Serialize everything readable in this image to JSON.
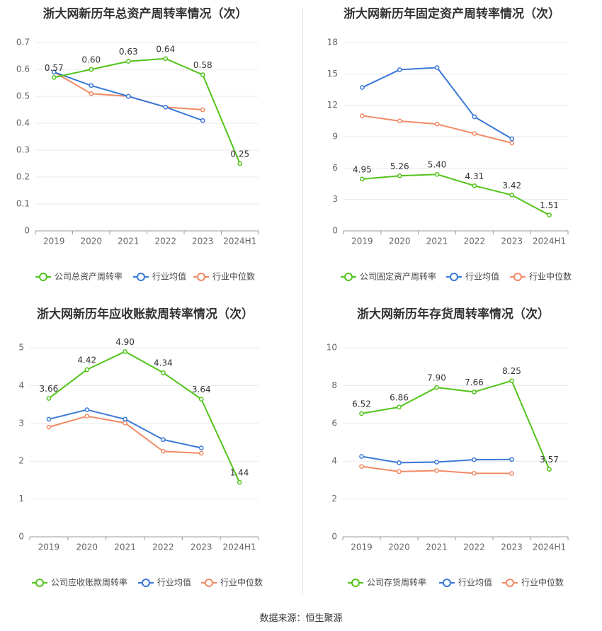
{
  "source": "数据来源：恒生聚源",
  "colors": {
    "company": "#52c41a",
    "avg": "#3a78d8",
    "median": "#f08a64"
  },
  "chart_data": [
    {
      "type": "line",
      "title": "浙大网新历年总资产周转率情况（次）",
      "categories": [
        "2019",
        "2020",
        "2021",
        "2022",
        "2023",
        "2024H1"
      ],
      "ylim": [
        0,
        0.7
      ],
      "yticks": [
        "0",
        "0.1",
        "0.2",
        "0.3",
        "0.4",
        "0.5",
        "0.6",
        "0.7"
      ],
      "legend_position": "bottom",
      "series": [
        {
          "name": "公司总资产周转率",
          "values": [
            0.57,
            0.6,
            0.63,
            0.64,
            0.58,
            0.25
          ],
          "labels": [
            "0.57",
            "0.60",
            "0.63",
            "0.64",
            "0.58",
            "0.25"
          ]
        },
        {
          "name": "行业均值",
          "values": [
            0.59,
            0.54,
            0.5,
            0.46,
            0.41,
            null
          ]
        },
        {
          "name": "行业中位数",
          "values": [
            0.59,
            0.51,
            0.5,
            0.46,
            0.45,
            null
          ]
        }
      ]
    },
    {
      "type": "line",
      "title": "浙大网新历年固定资产周转率情况（次）",
      "categories": [
        "2019",
        "2020",
        "2021",
        "2022",
        "2023",
        "2024H1"
      ],
      "ylim": [
        0,
        18
      ],
      "yticks": [
        "0",
        "3",
        "6",
        "9",
        "12",
        "15",
        "18"
      ],
      "legend_position": "bottom",
      "series": [
        {
          "name": "公司固定资产周转率",
          "values": [
            4.95,
            5.26,
            5.4,
            4.31,
            3.42,
            1.51
          ],
          "labels": [
            "4.95",
            "5.26",
            "5.40",
            "4.31",
            "3.42",
            "1.51"
          ]
        },
        {
          "name": "行业均值",
          "values": [
            13.7,
            15.4,
            15.6,
            10.9,
            8.8,
            null
          ]
        },
        {
          "name": "行业中位数",
          "values": [
            11.0,
            10.5,
            10.2,
            9.3,
            8.4,
            null
          ]
        }
      ]
    },
    {
      "type": "line",
      "title": "浙大网新历年应收账款周转率情况（次）",
      "categories": [
        "2019",
        "2020",
        "2021",
        "2022",
        "2023",
        "2024H1"
      ],
      "ylim": [
        0,
        5
      ],
      "yticks": [
        "0",
        "1",
        "2",
        "3",
        "4",
        "5"
      ],
      "legend_position": "bottom",
      "series": [
        {
          "name": "公司应收账款周转率",
          "values": [
            3.66,
            4.42,
            4.9,
            4.34,
            3.64,
            1.44
          ],
          "labels": [
            "3.66",
            "4.42",
            "4.90",
            "4.34",
            "3.64",
            "1.44"
          ]
        },
        {
          "name": "行业均值",
          "values": [
            3.11,
            3.36,
            3.11,
            2.57,
            2.35,
            null
          ]
        },
        {
          "name": "行业中位数",
          "values": [
            2.9,
            3.19,
            3.01,
            2.26,
            2.21,
            null
          ]
        }
      ]
    },
    {
      "type": "line",
      "title": "浙大网新历年存货周转率情况（次）",
      "categories": [
        "2019",
        "2020",
        "2021",
        "2022",
        "2023",
        "2024H1"
      ],
      "ylim": [
        0,
        10
      ],
      "yticks": [
        "0",
        "2",
        "4",
        "6",
        "8",
        "10"
      ],
      "legend_position": "bottom",
      "series": [
        {
          "name": "公司存货周转率",
          "values": [
            6.52,
            6.86,
            7.9,
            7.66,
            8.25,
            3.57
          ],
          "labels": [
            "6.52",
            "6.86",
            "7.90",
            "7.66",
            "8.25",
            "3.57"
          ]
        },
        {
          "name": "行业均值",
          "values": [
            4.25,
            3.92,
            3.95,
            4.08,
            4.09,
            null
          ]
        },
        {
          "name": "行业中位数",
          "values": [
            3.72,
            3.45,
            3.5,
            3.36,
            3.35,
            null
          ]
        }
      ]
    }
  ]
}
